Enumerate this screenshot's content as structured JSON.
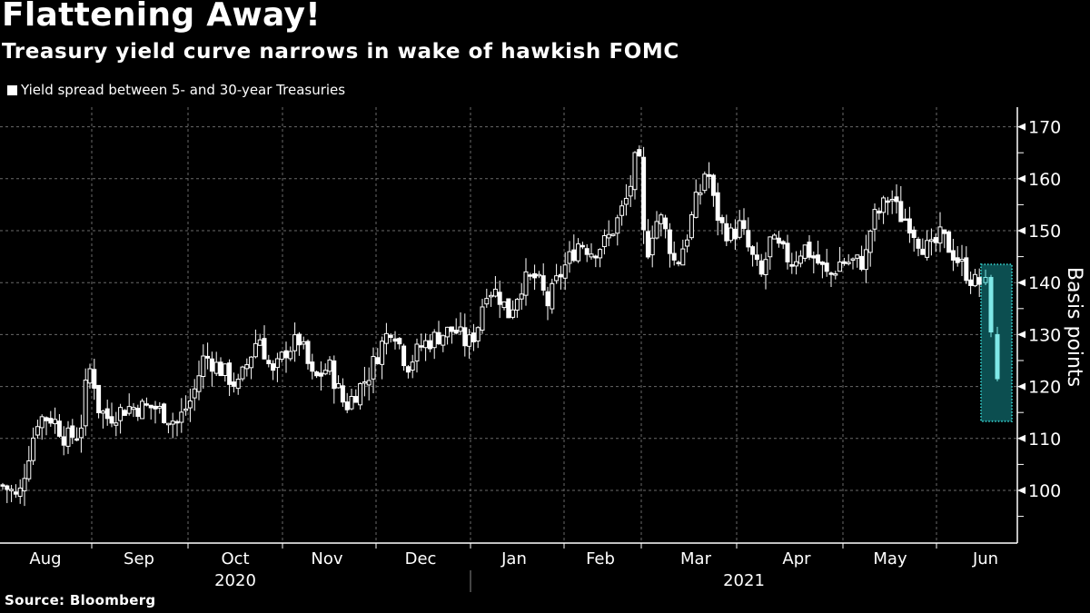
{
  "header": {
    "title": "Flattening Away!",
    "subtitle": "Treasury yield curve narrows in wake of hawkish FOMC"
  },
  "legend": {
    "label": "Yield spread between 5- and 30-year Treasuries",
    "color": "#ffffff"
  },
  "footer": {
    "source": "Source: Bloomberg"
  },
  "colors": {
    "background": "#000000",
    "candle": "#ffffff",
    "highlight_candle": "#7fe9e8",
    "highlight_fill": "#0c4e50",
    "highlight_border": "#2fb8b5",
    "grid": "#6a6a6a",
    "axis": "#ffffff"
  },
  "chart_data": {
    "type": "candlestick",
    "title": "Flattening Away!",
    "subtitle": "Treasury yield curve narrows in wake of hawkish FOMC",
    "ylabel": "Basis points",
    "xlabel": "",
    "ylim": [
      90,
      174
    ],
    "yticks": [
      100,
      110,
      120,
      130,
      140,
      150,
      160,
      170
    ],
    "y_axis_position": "right",
    "grid": true,
    "legend": [
      "Yield spread between 5- and 30-year Treasuries"
    ],
    "legend_position": "top-left",
    "x_month_labels": [
      "Aug",
      "Sep",
      "Oct",
      "Nov",
      "Dec",
      "Jan",
      "Feb",
      "Mar",
      "Apr",
      "May",
      "Jun"
    ],
    "x_year_labels": [
      {
        "label": "2020",
        "under": "Oct"
      },
      {
        "label": "2021",
        "under": "Mar"
      }
    ],
    "annotation": "Highlighted box around final sessions (mid-June 2021 FOMC) showing spread dropping from ~141 to ~121 bp",
    "series": [
      {
        "name": "Yield spread between 5- and 30-year Treasuries",
        "month_summary": [
          {
            "month": "Jul-2020 (end)",
            "open": 102,
            "high": 103,
            "low": 97,
            "close": 99
          },
          {
            "month": "Aug-2020",
            "open": 99,
            "high": 125,
            "low": 97,
            "close": 112
          },
          {
            "month": "Sep-2020",
            "open": 112,
            "high": 120,
            "low": 109,
            "close": 116
          },
          {
            "month": "Oct-2020",
            "open": 116,
            "high": 131,
            "low": 114,
            "close": 127
          },
          {
            "month": "Nov-2020",
            "open": 127,
            "high": 133,
            "low": 114,
            "close": 121
          },
          {
            "month": "Dec-2020",
            "open": 121,
            "high": 134,
            "low": 120,
            "close": 129
          },
          {
            "month": "Jan-2021",
            "open": 129,
            "high": 143,
            "low": 128,
            "close": 139
          },
          {
            "month": "Feb-2021",
            "open": 139,
            "high": 167,
            "low": 138,
            "close": 160
          },
          {
            "month": "Mar-2021",
            "open": 160,
            "high": 166,
            "low": 139,
            "close": 148
          },
          {
            "month": "Apr-2021",
            "open": 148,
            "high": 150,
            "low": 138,
            "close": 143
          },
          {
            "month": "May-2021",
            "open": 143,
            "high": 157,
            "low": 143,
            "close": 148
          },
          {
            "month": "Jun-2021",
            "open": 148,
            "high": 150,
            "low": 121,
            "close": 122
          }
        ],
        "key_points": [
          {
            "label": "start (late Jul 2020)",
            "value": 100
          },
          {
            "label": "late Aug 2020 high",
            "value": 125
          },
          {
            "label": "early Nov 2020 low",
            "value": 115
          },
          {
            "label": "Feb 2021 peak",
            "value": 167
          },
          {
            "label": "early Mar 2021 dip",
            "value": 139
          },
          {
            "label": "mid Mar 2021 high",
            "value": 166
          },
          {
            "label": "May 2021 high",
            "value": 157
          },
          {
            "label": "pre-FOMC Jun 2021",
            "value": 140
          },
          {
            "label": "post-FOMC Jun 2021 low",
            "value": 121
          }
        ]
      }
    ]
  }
}
